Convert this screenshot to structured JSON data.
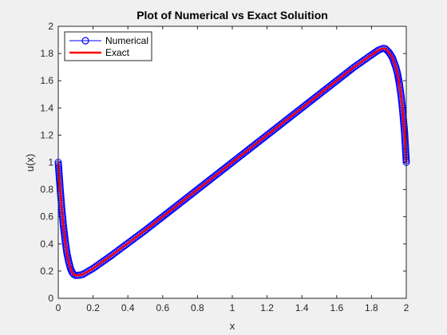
{
  "chart_data": {
    "type": "line",
    "title": "Plot of Numerical vs Exact Soluition",
    "xlabel": "x",
    "ylabel": "u(x)",
    "xlim": [
      0,
      2
    ],
    "ylim": [
      0,
      2
    ],
    "x_ticks": [
      "0",
      "0.2",
      "0.4",
      "0.6",
      "0.8",
      "1",
      "1.2",
      "1.4",
      "1.6",
      "1.8",
      "2"
    ],
    "y_ticks": [
      "0",
      "0.2",
      "0.4",
      "0.6",
      "0.8",
      "1",
      "1.2",
      "1.4",
      "1.6",
      "1.8",
      "2"
    ],
    "grid": false,
    "legend_position": "top-left",
    "series": [
      {
        "name": "Numerical",
        "color": "#0000ff",
        "marker": "circle",
        "x": [
          0,
          0.01,
          0.02,
          0.03,
          0.04,
          0.05,
          0.06,
          0.07,
          0.08,
          0.09,
          0.1,
          0.12,
          0.14,
          0.16,
          0.18,
          0.2,
          0.3,
          0.4,
          0.5,
          0.6,
          0.7,
          0.8,
          0.9,
          1.0,
          1.1,
          1.2,
          1.3,
          1.4,
          1.5,
          1.6,
          1.7,
          1.8,
          1.84,
          1.86,
          1.87,
          1.88,
          1.9,
          1.92,
          1.94,
          1.95,
          1.96,
          1.97,
          1.98,
          1.99,
          2.0
        ],
        "y": [
          1.0,
          0.82,
          0.66,
          0.53,
          0.42,
          0.33,
          0.27,
          0.22,
          0.19,
          0.175,
          0.168,
          0.17,
          0.175,
          0.19,
          0.205,
          0.22,
          0.31,
          0.405,
          0.5,
          0.6,
          0.7,
          0.8,
          0.9,
          1.0,
          1.1,
          1.2,
          1.3,
          1.4,
          1.5,
          1.6,
          1.7,
          1.79,
          1.825,
          1.835,
          1.838,
          1.835,
          1.81,
          1.77,
          1.7,
          1.65,
          1.58,
          1.49,
          1.37,
          1.22,
          1.0
        ]
      },
      {
        "name": "Exact",
        "color": "#ff0000",
        "marker": "none",
        "x": [
          0,
          0.01,
          0.02,
          0.03,
          0.04,
          0.05,
          0.06,
          0.07,
          0.08,
          0.09,
          0.1,
          0.12,
          0.14,
          0.16,
          0.18,
          0.2,
          0.3,
          0.4,
          0.5,
          0.6,
          0.7,
          0.8,
          0.9,
          1.0,
          1.1,
          1.2,
          1.3,
          1.4,
          1.5,
          1.6,
          1.7,
          1.8,
          1.84,
          1.86,
          1.87,
          1.88,
          1.9,
          1.92,
          1.94,
          1.95,
          1.96,
          1.97,
          1.98,
          1.99,
          2.0
        ],
        "y": [
          1.0,
          0.82,
          0.66,
          0.53,
          0.42,
          0.33,
          0.27,
          0.22,
          0.19,
          0.175,
          0.168,
          0.17,
          0.175,
          0.19,
          0.205,
          0.22,
          0.31,
          0.405,
          0.5,
          0.6,
          0.7,
          0.8,
          0.9,
          1.0,
          1.1,
          1.2,
          1.3,
          1.4,
          1.5,
          1.6,
          1.7,
          1.79,
          1.825,
          1.835,
          1.838,
          1.835,
          1.81,
          1.77,
          1.7,
          1.65,
          1.58,
          1.49,
          1.37,
          1.22,
          1.0
        ]
      }
    ]
  }
}
